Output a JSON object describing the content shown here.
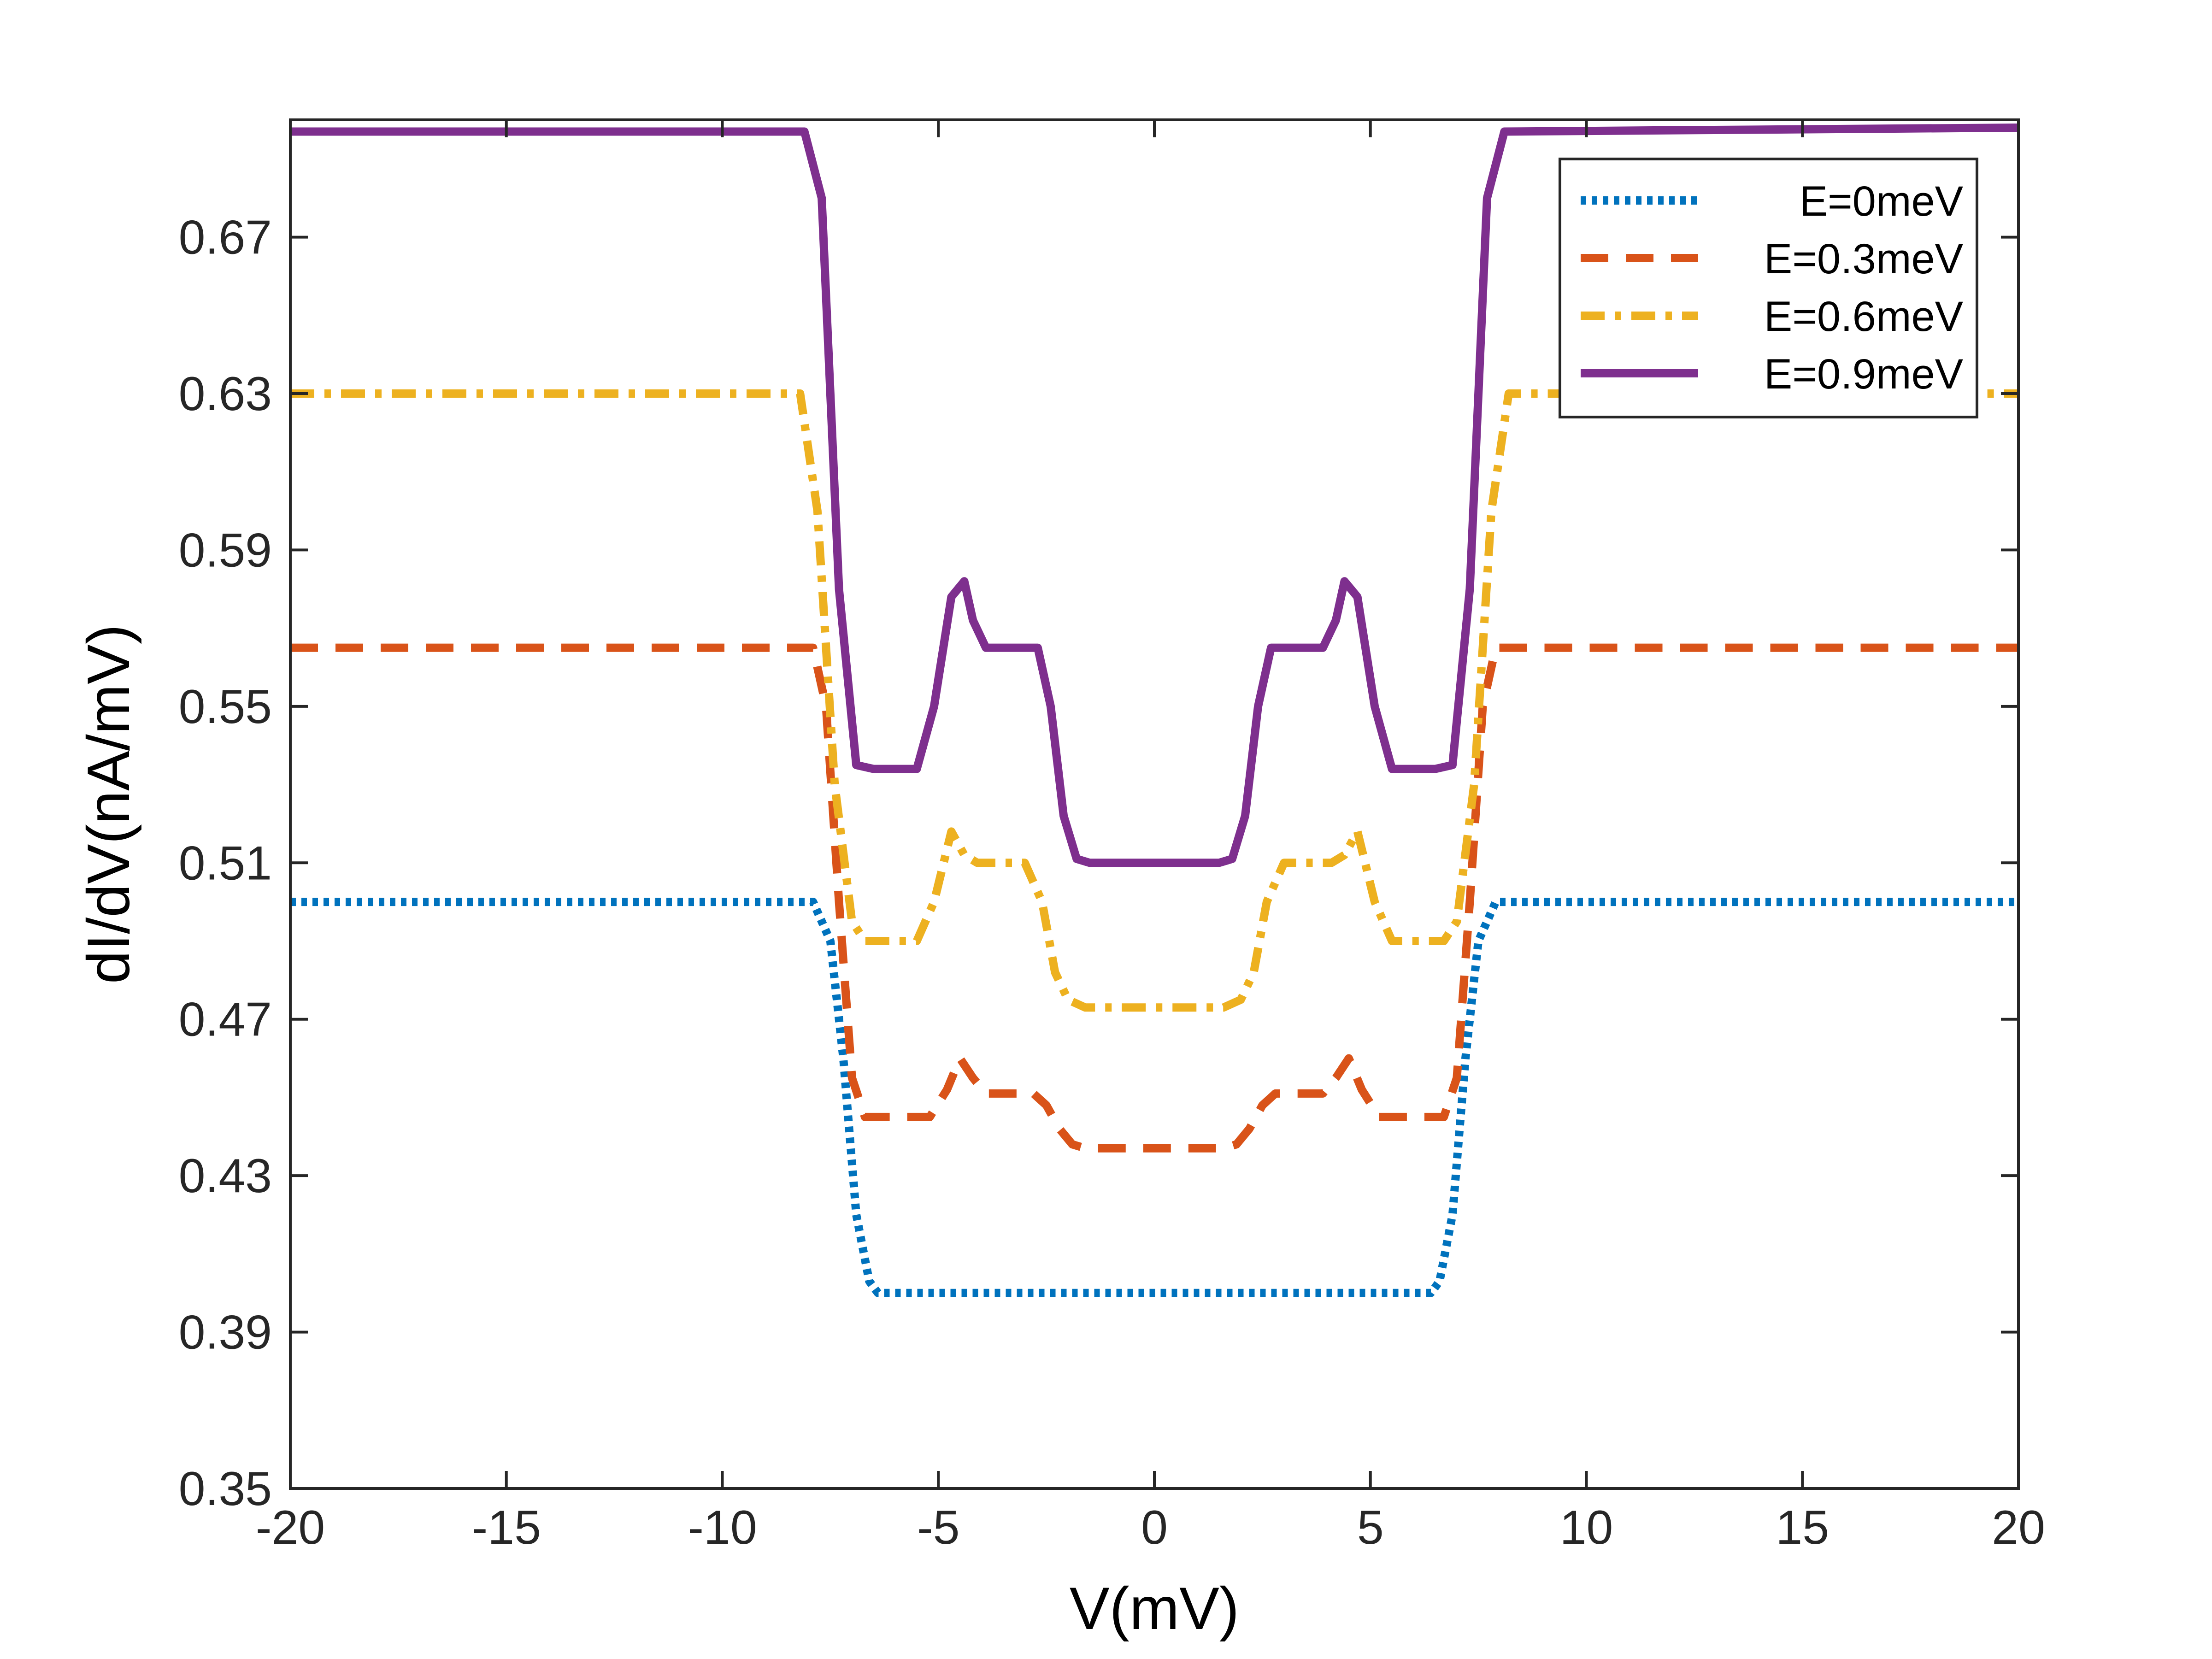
{
  "chart_data": {
    "type": "line",
    "title": "",
    "xlabel": "V(mV)",
    "ylabel": "dI/dV(nA/mV)",
    "xlim": [
      -20,
      20
    ],
    "ylim": [
      0.35,
      0.7
    ],
    "xticks": [
      -20,
      -15,
      -10,
      -5,
      0,
      5,
      10,
      15,
      20
    ],
    "xtick_labels": [
      "-20",
      "-15",
      "-10",
      "-5",
      "0",
      "5",
      "10",
      "15",
      "20"
    ],
    "yticks": [
      0.35,
      0.39,
      0.43,
      0.47,
      0.51,
      0.55,
      0.59,
      0.63,
      0.67
    ],
    "ytick_labels": [
      "0.35",
      "0.39",
      "0.43",
      "0.47",
      "0.51",
      "0.55",
      "0.59",
      "0.63",
      "0.67"
    ],
    "grid": false,
    "legend_position": "top-right",
    "series": [
      {
        "name": "E=0meV",
        "color": "#0072BD",
        "style": "dotted",
        "x": [
          -20,
          -7.9,
          -7.5,
          -7.2,
          -6.9,
          -6.6,
          -6.4,
          0,
          6.4,
          6.6,
          6.9,
          7.2,
          7.5,
          7.9,
          20
        ],
        "y": [
          0.5,
          0.5,
          0.49,
          0.46,
          0.42,
          0.403,
          0.4,
          0.4,
          0.4,
          0.403,
          0.42,
          0.46,
          0.49,
          0.5,
          0.5
        ]
      },
      {
        "name": "E=0.3meV",
        "color": "#D95319",
        "style": "dashed",
        "x": [
          -20,
          -7.9,
          -7.6,
          -7.3,
          -7.0,
          -6.7,
          -5.2,
          -4.8,
          -4.5,
          -4.2,
          -3.9,
          -2.8,
          -2.5,
          -2.2,
          -1.9,
          -1.6,
          0,
          1.6,
          1.9,
          2.2,
          2.5,
          2.8,
          3.9,
          4.2,
          4.5,
          4.8,
          5.2,
          6.7,
          7.0,
          7.3,
          7.6,
          7.9,
          20
        ],
        "y": [
          0.565,
          0.565,
          0.55,
          0.5,
          0.455,
          0.445,
          0.445,
          0.452,
          0.46,
          0.455,
          0.451,
          0.451,
          0.448,
          0.442,
          0.438,
          0.437,
          0.437,
          0.437,
          0.438,
          0.442,
          0.448,
          0.451,
          0.451,
          0.455,
          0.46,
          0.452,
          0.445,
          0.445,
          0.455,
          0.5,
          0.55,
          0.565,
          0.565
        ]
      },
      {
        "name": "E=0.6meV",
        "color": "#EDB120",
        "style": "dashdot",
        "x": [
          -20,
          -8.2,
          -7.8,
          -7.4,
          -7.0,
          -6.7,
          -5.5,
          -5.1,
          -4.7,
          -4.4,
          -4.1,
          -3.0,
          -2.6,
          -2.3,
          -2.0,
          -1.6,
          0,
          1.6,
          2.0,
          2.3,
          2.6,
          3.0,
          4.1,
          4.4,
          4.7,
          5.1,
          5.5,
          6.7,
          7.0,
          7.4,
          7.8,
          8.2,
          20
        ],
        "y": [
          0.63,
          0.63,
          0.6,
          0.53,
          0.495,
          0.49,
          0.49,
          0.5,
          0.518,
          0.512,
          0.51,
          0.51,
          0.5,
          0.482,
          0.475,
          0.473,
          0.473,
          0.473,
          0.475,
          0.482,
          0.5,
          0.51,
          0.51,
          0.512,
          0.518,
          0.5,
          0.49,
          0.49,
          0.495,
          0.53,
          0.6,
          0.63,
          0.63
        ]
      },
      {
        "name": "E=0.9meV",
        "color": "#7E2F8E",
        "style": "solid",
        "x": [
          -20,
          -8.1,
          -7.7,
          -7.3,
          -6.9,
          -6.5,
          -5.5,
          -5.1,
          -4.7,
          -4.4,
          -4.2,
          -3.9,
          -2.7,
          -2.4,
          -2.1,
          -1.8,
          -1.5,
          0,
          1.5,
          1.8,
          2.1,
          2.4,
          2.7,
          3.9,
          4.2,
          4.4,
          4.7,
          5.1,
          5.5,
          6.5,
          6.9,
          7.3,
          7.7,
          8.1,
          20
        ],
        "y": [
          0.697,
          0.697,
          0.68,
          0.58,
          0.535,
          0.534,
          0.534,
          0.55,
          0.578,
          0.582,
          0.572,
          0.565,
          0.565,
          0.55,
          0.522,
          0.511,
          0.51,
          0.51,
          0.51,
          0.511,
          0.522,
          0.55,
          0.565,
          0.565,
          0.572,
          0.582,
          0.578,
          0.55,
          0.534,
          0.534,
          0.535,
          0.58,
          0.68,
          0.697,
          0.698
        ]
      }
    ]
  }
}
